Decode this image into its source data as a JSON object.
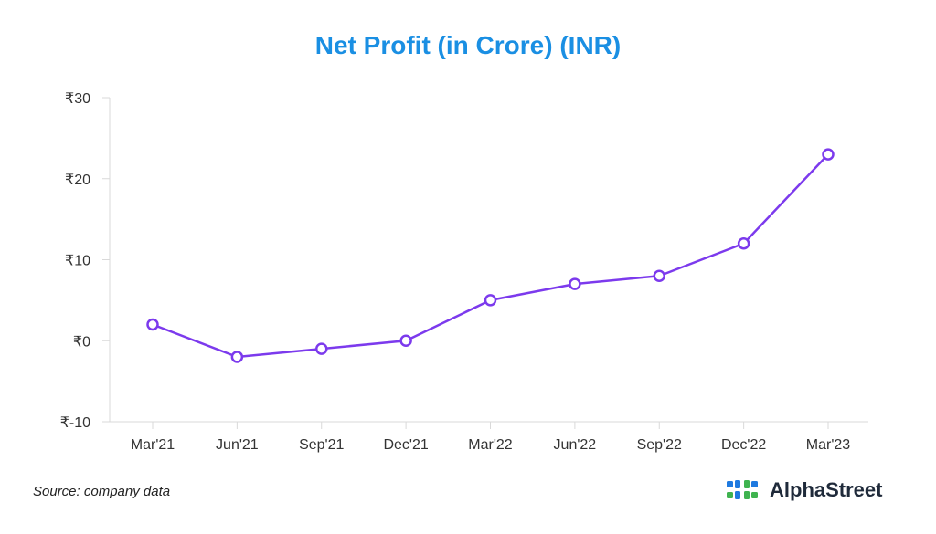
{
  "chart_data": {
    "type": "line",
    "title": "Net Profit (in Crore) (INR)",
    "categories": [
      "Mar'21",
      "Jun'21",
      "Sep'21",
      "Dec'21",
      "Mar'22",
      "Jun'22",
      "Sep'22",
      "Dec'22",
      "Mar'23"
    ],
    "series": [
      {
        "values": [
          2,
          -2,
          -1,
          0,
          5,
          7,
          8,
          12,
          23
        ]
      }
    ],
    "ylim": [
      -10,
      30
    ],
    "yticks": [
      30,
      20,
      10,
      0,
      -10
    ],
    "ytick_labels": [
      "₹30",
      "₹20",
      "₹10",
      "₹0",
      "₹-10"
    ],
    "xlabel": "",
    "ylabel": "",
    "line_color": "#7c3aed",
    "grid": false
  },
  "footer": {
    "source": "Source: company data",
    "brand": "AlphaStreet",
    "logo_icon": "alphastreet-logo-icon"
  },
  "colors": {
    "title": "#1a8fe3",
    "logo_blue": "#1f7ae0",
    "logo_green": "#3fb34f"
  }
}
